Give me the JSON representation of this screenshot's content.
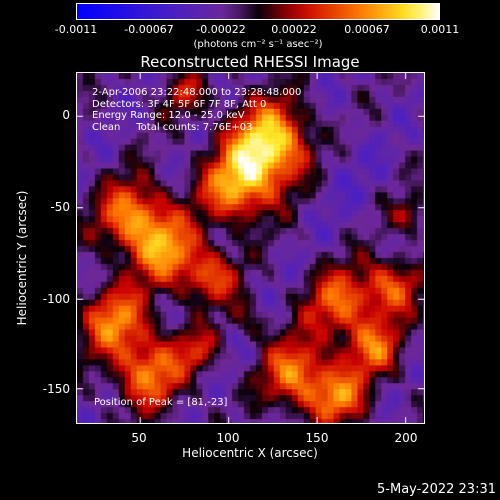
{
  "colorbar": {
    "ticks": [
      "-0.0011",
      "-0.00067",
      "-0.00022",
      "0.00022",
      "0.00067",
      "0.0011"
    ],
    "units": "(photons cm⁻² s⁻¹ asec⁻²)"
  },
  "plot": {
    "title": "Reconstructed RHESSI Image",
    "info_lines": [
      "2-Apr-2006 23:22:48.000 to 23:28:48.000",
      "Detectors: 3F 4F 5F 6F 7F 8F, Att 0",
      "Energy Range: 12.0 - 25.0 keV",
      "Clean     Total counts: 7.76E+03"
    ],
    "peak_label": "Position of Peak = [81,-23]",
    "x_axis": {
      "label": "Heliocentric X (arcsec)",
      "ticks": [
        "50",
        "100",
        "150",
        "200"
      ]
    },
    "y_axis": {
      "label": "Heliocentric Y (arcsec)",
      "ticks": [
        "0",
        "-50",
        "-100",
        "-150"
      ]
    }
  },
  "footer": {
    "datestamp": "5-May-2022 23:31"
  }
}
